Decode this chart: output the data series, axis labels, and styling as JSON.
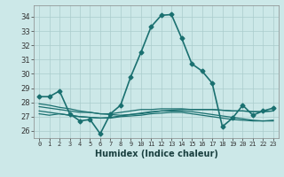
{
  "xlabel": "Humidex (Indice chaleur)",
  "ylabel": "",
  "background_color": "#cce8e8",
  "grid_color": "#aacccc",
  "line_color": "#1a7070",
  "xlim": [
    -0.5,
    23.5
  ],
  "ylim": [
    25.5,
    34.8
  ],
  "yticks": [
    26,
    27,
    28,
    29,
    30,
    31,
    32,
    33,
    34
  ],
  "xticks": [
    0,
    1,
    2,
    3,
    4,
    5,
    6,
    7,
    8,
    9,
    10,
    11,
    12,
    13,
    14,
    15,
    16,
    17,
    18,
    19,
    20,
    21,
    22,
    23
  ],
  "series": [
    {
      "x": [
        0,
        1,
        2,
        3,
        4,
        5,
        6,
        7,
        8,
        9,
        10,
        11,
        12,
        13,
        14,
        15,
        16,
        17,
        18,
        19,
        20,
        21,
        22,
        23
      ],
      "y": [
        28.4,
        28.4,
        28.8,
        27.2,
        26.7,
        26.8,
        25.8,
        27.2,
        27.8,
        29.8,
        31.5,
        33.3,
        34.1,
        34.15,
        32.5,
        30.7,
        30.2,
        29.35,
        26.3,
        26.9,
        27.8,
        27.1,
        27.4,
        27.6
      ],
      "marker": "D",
      "markersize": 2.5,
      "linewidth": 1.2
    },
    {
      "x": [
        0,
        1,
        2,
        3,
        4,
        5,
        6,
        7,
        8,
        9,
        10,
        11,
        12,
        13,
        14,
        15,
        16,
        17,
        18,
        19,
        20,
        21,
        22,
        23
      ],
      "y": [
        27.7,
        27.6,
        27.5,
        27.4,
        27.3,
        27.3,
        27.2,
        27.2,
        27.3,
        27.4,
        27.5,
        27.5,
        27.55,
        27.55,
        27.55,
        27.5,
        27.5,
        27.5,
        27.45,
        27.4,
        27.4,
        27.35,
        27.35,
        27.4
      ],
      "marker": null,
      "markersize": 0,
      "linewidth": 0.9
    },
    {
      "x": [
        0,
        1,
        2,
        3,
        4,
        5,
        6,
        7,
        8,
        9,
        10,
        11,
        12,
        13,
        14,
        15,
        16,
        17,
        18,
        19,
        20,
        21,
        22,
        23
      ],
      "y": [
        27.4,
        27.3,
        27.2,
        27.1,
        27.0,
        26.95,
        26.9,
        26.9,
        27.0,
        27.05,
        27.1,
        27.2,
        27.25,
        27.3,
        27.3,
        27.2,
        27.1,
        27.0,
        26.9,
        26.8,
        26.75,
        26.7,
        26.7,
        26.75
      ],
      "marker": null,
      "markersize": 0,
      "linewidth": 0.9
    },
    {
      "x": [
        0,
        1,
        2,
        3,
        4,
        5,
        6,
        7,
        8,
        9,
        10,
        11,
        12,
        13,
        14,
        15,
        16,
        17,
        18,
        19,
        20,
        21,
        22,
        23
      ],
      "y": [
        27.9,
        27.8,
        27.65,
        27.55,
        27.4,
        27.3,
        27.2,
        27.15,
        27.1,
        27.15,
        27.2,
        27.3,
        27.4,
        27.4,
        27.4,
        27.35,
        27.25,
        27.15,
        27.05,
        26.95,
        26.85,
        26.75,
        26.7,
        26.7
      ],
      "marker": null,
      "markersize": 0,
      "linewidth": 0.9
    },
    {
      "x": [
        0,
        1,
        2,
        3,
        4,
        5,
        6,
        7,
        8,
        9,
        10,
        11,
        12,
        13,
        14,
        15,
        16,
        17,
        18,
        19,
        20,
        21,
        22,
        23
      ],
      "y": [
        27.2,
        27.1,
        27.2,
        27.1,
        27.0,
        26.95,
        26.9,
        26.95,
        27.05,
        27.15,
        27.25,
        27.35,
        27.4,
        27.45,
        27.5,
        27.5,
        27.5,
        27.5,
        27.45,
        27.4,
        27.4,
        27.35,
        27.35,
        27.4
      ],
      "marker": null,
      "markersize": 0,
      "linewidth": 0.9
    }
  ]
}
